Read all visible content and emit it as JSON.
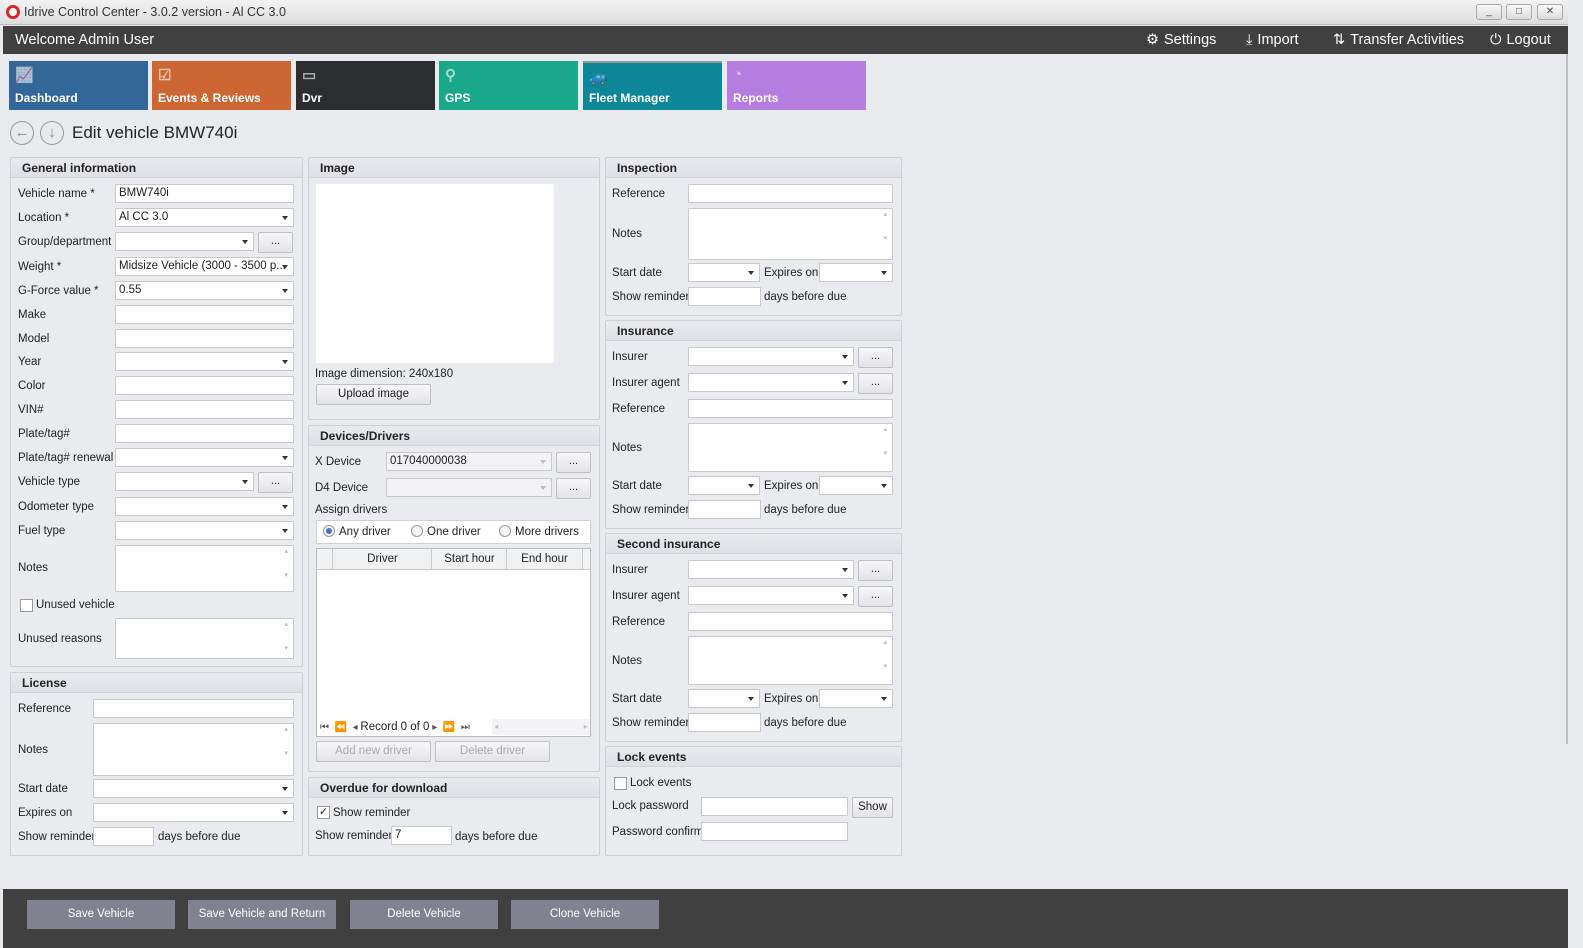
{
  "window": {
    "title": "Idrive Control Center - 3.0.2 version - Al CC 3.0",
    "minimize": "_",
    "maximize": "□",
    "close": "✕"
  },
  "header": {
    "welcome": "Welcome Admin User",
    "settings": "Settings",
    "import": "Import",
    "transfer": "Transfer Activities",
    "logout": "Logout"
  },
  "tiles": [
    {
      "label": "Dashboard",
      "color": "#336699"
    },
    {
      "label": "Events & Reviews",
      "color": "#cc6633"
    },
    {
      "label": "Dvr",
      "color": "#2b2d31"
    },
    {
      "label": "GPS",
      "color": "#19a88a"
    },
    {
      "label": "Fleet Manager",
      "color": "#0e8799"
    },
    {
      "label": "Reports",
      "color": "#b57de0"
    }
  ],
  "page": {
    "title": "Edit vehicle BMW740i"
  },
  "general": {
    "title": "General information",
    "vehicle_name_label": "Vehicle name *",
    "vehicle_name": "BMW740i",
    "location_label": "Location *",
    "location": "Al CC 3.0",
    "group_label": "Group/department",
    "weight_label": "Weight *",
    "weight": "Midsize Vehicle (3000 - 3500 p...",
    "gforce_label": "G-Force value *",
    "gforce": "0.55",
    "make_label": "Make",
    "model_label": "Model",
    "year_label": "Year",
    "color_label": "Color",
    "vin_label": "VIN#",
    "plate_label": "Plate/tag#",
    "plate_renewal_label": "Plate/tag# renewal",
    "vehicle_type_label": "Vehicle type",
    "odometer_label": "Odometer type",
    "fuel_label": "Fuel type",
    "notes_label": "Notes",
    "unused_label": "Unused vehicle",
    "unused_reasons_label": "Unused reasons",
    "ellipsis": "..."
  },
  "license": {
    "title": "License",
    "reference": "Reference",
    "notes": "Notes",
    "start": "Start date",
    "expires": "Expires on",
    "reminder": "Show reminder",
    "days": "days before due"
  },
  "image": {
    "title": "Image",
    "dimension": "Image dimension:  240x180",
    "upload": "Upload image"
  },
  "devices": {
    "title": "Devices/Drivers",
    "x_label": "X Device",
    "x_value": "017040000038",
    "d4_label": "D4 Device",
    "assign": "Assign drivers",
    "radios": [
      {
        "label": "Any driver",
        "checked": true
      },
      {
        "label": "One driver",
        "checked": false
      },
      {
        "label": "More drivers",
        "checked": false
      }
    ],
    "columns": [
      "Driver",
      "Start hour",
      "End hour"
    ],
    "record": "Record 0 of 0",
    "add": "Add new driver",
    "delete": "Delete driver"
  },
  "overdue": {
    "title": "Overdue for download",
    "show_reminder_check": "Show reminder",
    "checked": true,
    "reminder": "Show reminder",
    "value": "7",
    "days": "days before due"
  },
  "inspection": {
    "title": "Inspection",
    "reference": "Reference",
    "notes": "Notes",
    "start": "Start date",
    "expires": "Expires on",
    "reminder": "Show reminder",
    "days": "days before due"
  },
  "insurance": {
    "title": "Insurance",
    "insurer": "Insurer",
    "agent": "Insurer agent",
    "reference": "Reference",
    "notes": "Notes",
    "start": "Start date",
    "expires": "Expires on",
    "reminder": "Show reminder",
    "days": "days before due"
  },
  "second": {
    "title": "Second insurance",
    "insurer": "Insurer",
    "agent": "Insurer agent",
    "reference": "Reference",
    "notes": "Notes",
    "start": "Start date",
    "expires": "Expires on",
    "reminder": "Show reminder",
    "days": "days before due"
  },
  "lock": {
    "title": "Lock events",
    "check": "Lock events",
    "password": "Lock password",
    "show": "Show",
    "confirm": "Password confirm"
  },
  "footer": {
    "save": "Save Vehicle",
    "save_return": "Save Vehicle and Return",
    "delete": "Delete Vehicle",
    "clone": "Clone Vehicle"
  }
}
